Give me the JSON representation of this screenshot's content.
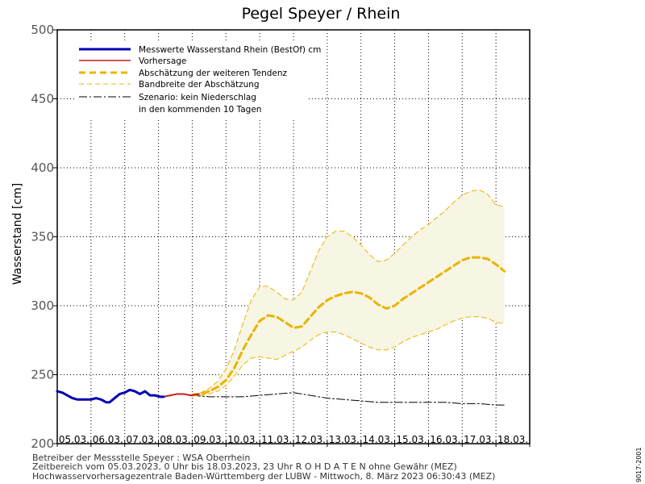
{
  "chart_data": {
    "type": "line",
    "title": "Pegel Speyer / Rhein",
    "ylabel": "Wasserstand [cm]",
    "xlabel": "",
    "ylim": [
      200,
      500
    ],
    "yticks": [
      200,
      250,
      300,
      350,
      400,
      450,
      500
    ],
    "categories": [
      "05.03.",
      "06.03.",
      "07.03.",
      "08.03.",
      "09.03.",
      "10.03.",
      "11.03.",
      "12.03.",
      "13.03.",
      "14.03.",
      "15.03.",
      "16.03.",
      "17.03.",
      "18.03."
    ],
    "grid": true,
    "legend_position": "top-left",
    "legend": [
      "Messwerte Wasserstand Rhein (BestOf)  cm",
      "Vorhersage",
      "Abschätzung der weiteren Tendenz",
      "Bandbreite der Abschätzung",
      "Szenario: kein Niederschlag",
      "in den kommenden 10 Tagen"
    ],
    "x_unit": "days since 05.03.2023 00:00",
    "series": [
      {
        "name": "Messwerte Wasserstand Rhein (BestOf)  cm",
        "color": "#0000b4",
        "style": "solid-thick",
        "x": [
          0,
          0.15,
          0.3,
          0.45,
          0.6,
          0.8,
          1.0,
          1.15,
          1.3,
          1.45,
          1.55,
          1.7,
          1.85,
          2.0,
          2.15,
          2.3,
          2.45,
          2.6,
          2.75,
          2.9,
          3.05,
          3.15
        ],
        "values": [
          238,
          237,
          235,
          233,
          232,
          232,
          232,
          233,
          232,
          230,
          230,
          233,
          236,
          237,
          239,
          238,
          236,
          238,
          235,
          235,
          234,
          234
        ]
      },
      {
        "name": "Vorhersage",
        "color": "#c81e1e",
        "style": "solid",
        "x": [
          3.15,
          3.35,
          3.55,
          3.75,
          3.95,
          4.2
        ],
        "values": [
          234,
          235,
          236,
          236,
          235,
          236
        ]
      },
      {
        "name": "Abschätzung der weiteren Tendenz",
        "color": "#e8b400",
        "style": "dashed-thick",
        "x": [
          4.0,
          4.25,
          4.5,
          4.75,
          5.0,
          5.25,
          5.5,
          5.75,
          6.0,
          6.25,
          6.5,
          6.75,
          7.0,
          7.25,
          7.5,
          7.75,
          8.0,
          8.25,
          8.5,
          8.75,
          9.0,
          9.25,
          9.5,
          9.75,
          10.0,
          10.25,
          10.5,
          10.75,
          11.0,
          11.25,
          11.5,
          11.75,
          12.0,
          12.25,
          12.5,
          12.75,
          13.0,
          13.25
        ],
        "values": [
          235,
          236,
          238,
          241,
          246,
          255,
          268,
          279,
          289,
          293,
          292,
          288,
          284,
          285,
          292,
          299,
          304,
          307,
          309,
          310,
          309,
          306,
          301,
          298,
          300,
          305,
          309,
          313,
          317,
          321,
          325,
          329,
          333,
          335,
          335,
          334,
          330,
          325
        ]
      },
      {
        "name": "Bandbreite der Abschätzung (obere Grenze)",
        "color": "#e8b400",
        "style": "dashed-thin",
        "x": [
          4.0,
          4.25,
          4.5,
          4.75,
          5.0,
          5.25,
          5.5,
          5.75,
          6.0,
          6.25,
          6.5,
          6.75,
          7.0,
          7.25,
          7.5,
          7.75,
          8.0,
          8.25,
          8.5,
          8.75,
          9.0,
          9.25,
          9.5,
          9.75,
          10.0,
          10.25,
          10.5,
          10.75,
          11.0,
          11.25,
          11.5,
          11.75,
          12.0,
          12.25,
          12.5,
          12.75,
          13.0,
          13.25
        ],
        "values": [
          236,
          237,
          240,
          245,
          254,
          268,
          287,
          304,
          314,
          314,
          310,
          305,
          304,
          310,
          325,
          340,
          350,
          354,
          354,
          350,
          344,
          337,
          332,
          333,
          338,
          344,
          350,
          355,
          359,
          364,
          369,
          375,
          380,
          383,
          384,
          381,
          373,
          372
        ]
      },
      {
        "name": "Bandbreite der Abschätzung (untere Grenze)",
        "color": "#e8b400",
        "style": "dashed-thin",
        "x": [
          4.0,
          4.25,
          4.5,
          4.75,
          5.0,
          5.25,
          5.5,
          5.75,
          6.0,
          6.25,
          6.5,
          6.75,
          7.0,
          7.25,
          7.5,
          7.75,
          8.0,
          8.25,
          8.5,
          8.75,
          9.0,
          9.25,
          9.5,
          9.75,
          10.0,
          10.25,
          10.5,
          10.75,
          11.0,
          11.25,
          11.5,
          11.75,
          12.0,
          12.25,
          12.5,
          12.75,
          13.0,
          13.25
        ],
        "values": [
          235,
          235,
          236,
          238,
          242,
          249,
          257,
          262,
          263,
          262,
          261,
          264,
          267,
          270,
          275,
          279,
          281,
          281,
          279,
          276,
          273,
          270,
          268,
          268,
          270,
          274,
          277,
          279,
          281,
          283,
          286,
          289,
          291,
          292,
          292,
          291,
          288,
          287
        ]
      },
      {
        "name": "Szenario: kein Niederschlag",
        "color": "#000000",
        "style": "dash-dot",
        "x": [
          4.0,
          4.5,
          5.0,
          5.5,
          6.0,
          6.5,
          7.0,
          7.5,
          8.0,
          8.5,
          9.0,
          9.5,
          10.0,
          10.5,
          11.0,
          11.5,
          12.0,
          12.5,
          13.0,
          13.25
        ],
        "values": [
          235,
          234,
          234,
          234,
          235,
          236,
          237,
          235,
          233,
          232,
          231,
          230,
          230,
          230,
          230,
          230,
          229,
          229,
          228,
          228
        ]
      }
    ]
  },
  "footer": {
    "line1": "Betreiber der Messstelle Speyer : WSA Oberrhein",
    "line2": "Zeitbereich vom 05.03.2023, 0 Uhr bis 18.03.2023, 23 Uhr    R O H D A T E N ohne Gewähr (MEZ)",
    "line3": "Hochwasservorhersagezentrale Baden-Württemberg der LUBW - Mittwoch, 8. März 2023 06:30:43 (MEZ)",
    "side_code": "9017-2001"
  }
}
